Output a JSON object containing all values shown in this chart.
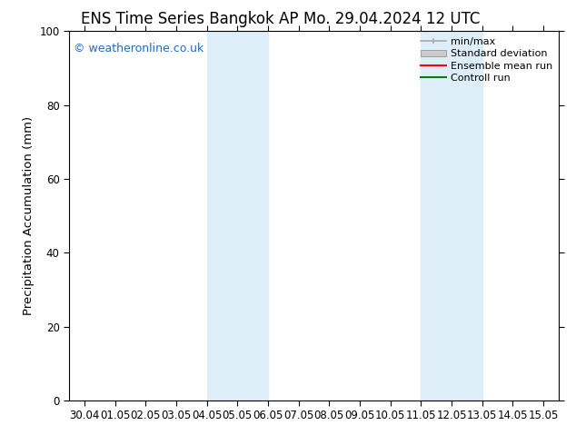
{
  "title_left": "ENS Time Series Bangkok AP",
  "title_right": "Mo. 29.04.2024 12 UTC",
  "ylabel": "Precipitation Accumulation (mm)",
  "xlabel": "",
  "xlim_dates": [
    "30.04",
    "01.05",
    "02.05",
    "03.05",
    "04.05",
    "05.05",
    "06.05",
    "07.05",
    "08.05",
    "09.05",
    "10.05",
    "11.05",
    "12.05",
    "13.05",
    "14.05",
    "15.05"
  ],
  "ylim": [
    0,
    100
  ],
  "yticks": [
    0,
    20,
    40,
    60,
    80,
    100
  ],
  "shaded_regions": [
    {
      "xstart": 4.0,
      "xend": 6.0,
      "color": "#ddeef8",
      "alpha": 1.0
    },
    {
      "xstart": 11.0,
      "xend": 13.0,
      "color": "#ddeef8",
      "alpha": 1.0
    }
  ],
  "watermark_text": "© weatheronline.co.uk",
  "watermark_color": "#1a6fcc",
  "legend_labels": [
    "min/max",
    "Standard deviation",
    "Ensemble mean run",
    "Controll run"
  ],
  "legend_colors_line": [
    "#aaaaaa",
    "#bbbbbb",
    "#ff0000",
    "#008000"
  ],
  "background_color": "#ffffff",
  "tick_label_fontsize": 8.5,
  "title_fontsize": 12,
  "ylabel_fontsize": 9.5,
  "watermark_fontsize": 9
}
